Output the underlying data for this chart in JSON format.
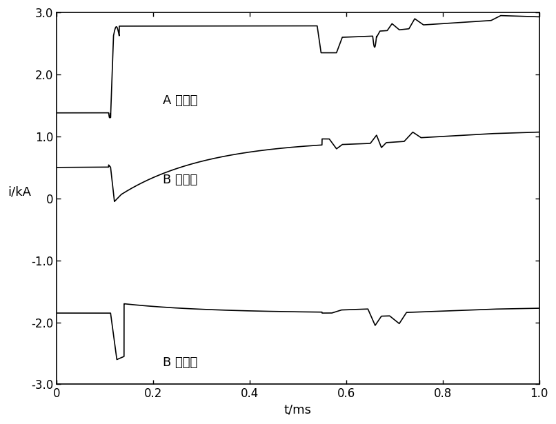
{
  "xlim": [
    0,
    1.0
  ],
  "ylim": [
    -3.0,
    3.0
  ],
  "xlabel": "t/ms",
  "ylabel": "i/kA",
  "yticks": [
    -3.0,
    -2.0,
    -1.0,
    0.0,
    1.0,
    2.0,
    3.0
  ],
  "xticks": [
    0,
    0.2,
    0.4,
    0.6,
    0.8,
    1.0
  ],
  "label_A": "A 相电流",
  "label_B_top": "B 相电流",
  "label_B_bot": "B 相电流",
  "background": "#ffffff",
  "line_color": "#000000",
  "figsize": [
    8.06,
    6.15
  ],
  "dpi": 100
}
